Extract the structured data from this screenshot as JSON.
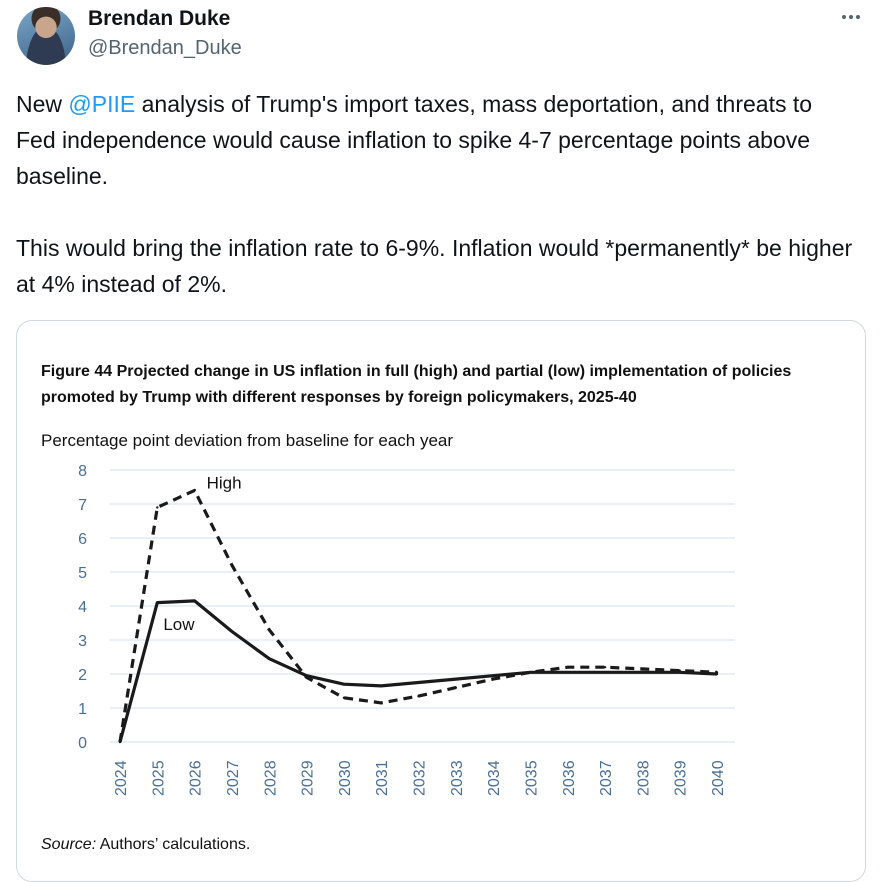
{
  "author": {
    "name": "Brendan Duke",
    "handle": "@Brendan_Duke"
  },
  "tweet": {
    "prefix": "New ",
    "mention": "@PIIE",
    "line1_rest": " analysis of Trump's import taxes, mass deportation, and threats to Fed independence would cause inflation to spike 4-7 percentage points above baseline.",
    "paragraph2": "This would bring the inflation rate to 6-9%. Inflation would *permanently* be higher at 4% instead of 2%."
  },
  "figure": {
    "title": "Figure 44 Projected change in US inflation in full (high) and partial (low) implementation of policies promoted by Trump with different responses by foreign policymakers, 2025-40",
    "subtitle": "Percentage point deviation from baseline for each year",
    "source_label": "Source:",
    "source_text": " Authors’ calculations."
  },
  "chart_data": {
    "type": "line",
    "title": "Figure 44 Projected change in US inflation in full (high) and partial (low) implementation of policies promoted by Trump with different responses by foreign policymakers, 2025-40",
    "ylabel": "Percentage point deviation from baseline for each year",
    "xlabel": "",
    "x": [
      "2024",
      "2025",
      "2026",
      "2027",
      "2028",
      "2029",
      "2030",
      "2031",
      "2032",
      "2033",
      "2034",
      "2035",
      "2036",
      "2037",
      "2038",
      "2039",
      "2040"
    ],
    "ylim": [
      0,
      8
    ],
    "yticks": [
      "0",
      "1",
      "2",
      "3",
      "4",
      "5",
      "6",
      "7",
      "8"
    ],
    "grid": true,
    "series": [
      {
        "name": "High",
        "style": "dashed",
        "values": [
          0,
          6.9,
          7.4,
          5.2,
          3.3,
          1.9,
          1.3,
          1.15,
          1.35,
          1.6,
          1.85,
          2.05,
          2.2,
          2.2,
          2.15,
          2.1,
          2.05
        ]
      },
      {
        "name": "Low",
        "style": "solid",
        "values": [
          0,
          4.1,
          4.15,
          3.25,
          2.45,
          1.95,
          1.7,
          1.65,
          1.75,
          1.85,
          1.95,
          2.05,
          2.05,
          2.05,
          2.05,
          2.05,
          2.0
        ]
      }
    ],
    "colors": {
      "line": "#1a1a1a",
      "grid": "#cfe0ec",
      "axis_text": "#4a6f94"
    }
  }
}
